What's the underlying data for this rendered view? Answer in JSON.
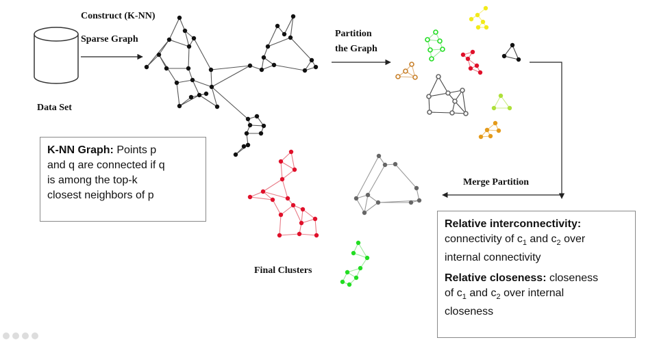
{
  "labels": {
    "construct": "Construct (K-NN)",
    "sparse_graph": "Sparse Graph",
    "data_set": "Data Set",
    "partition_line1": "Partition",
    "partition_line2": "the Graph",
    "merge_partition": "Merge Partition",
    "final_clusters": "Final Clusters"
  },
  "knn_box": {
    "title": "K-NN Graph:",
    "line1": "Points p",
    "line2": "and q are connected if q",
    "line3": "is among the top-k",
    "line4": "closest neighbors of p"
  },
  "relative_box": {
    "interconnectivity_title": "Relative interconnectivity:",
    "interconnectivity_text_a": "connectivity of c",
    "interconnectivity_sub1": "1",
    "interconnectivity_text_b": " and c",
    "interconnectivity_sub2": "2",
    "interconnectivity_text_c": " over",
    "interconnectivity_text_d": "internal connectivity",
    "closeness_title": "Relative closeness:",
    "closeness_text_a": " closeness",
    "closeness_text_b": "of c",
    "closeness_sub1": "1",
    "closeness_text_c": " and c",
    "closeness_sub2": "2",
    "closeness_text_d": " over internal",
    "closeness_text_e": "closeness"
  },
  "colors": {
    "black": "#111111",
    "gray": "#666666",
    "red": "#e0102a",
    "pink_edge": "#e87a86",
    "green": "#22dd22",
    "light_green": "#9be89b",
    "yellow": "#f2ea1a",
    "orange": "#e49a1a",
    "lime": "#aee03a",
    "brown_orange": "#c8802a"
  }
}
